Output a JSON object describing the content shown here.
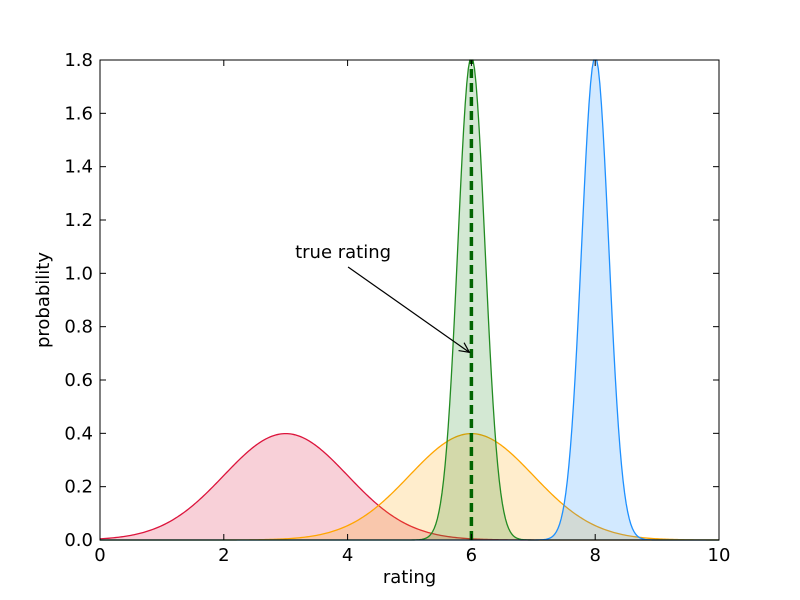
{
  "chart_data": {
    "type": "area",
    "xlabel": "rating",
    "ylabel": "probability",
    "xlim": [
      0,
      10
    ],
    "ylim": [
      0,
      1.8
    ],
    "xticks": [
      0,
      2,
      4,
      6,
      8,
      10
    ],
    "xtick_labels": [
      "0",
      "2",
      "4",
      "6",
      "8",
      "10"
    ],
    "yticks": [
      0.0,
      0.2,
      0.4,
      0.6,
      0.8,
      1.0,
      1.2,
      1.4,
      1.6,
      1.8
    ],
    "ytick_labels": [
      "0.0",
      "0.2",
      "0.4",
      "0.6",
      "0.8",
      "1.0",
      "1.2",
      "1.4",
      "1.6",
      "1.8"
    ],
    "grid": false,
    "series": [
      {
        "mean": 3.0,
        "sd": 1.0,
        "line_color": "#dc143c",
        "fill_color": "#dc143c",
        "fill_alpha": 0.2
      },
      {
        "mean": 6.0,
        "sd": 1.0,
        "line_color": "#ffa500",
        "fill_color": "#ffa500",
        "fill_alpha": 0.2
      },
      {
        "mean": 6.0,
        "sd": 0.22,
        "line_color": "#228b22",
        "fill_color": "#228b22",
        "fill_alpha": 0.2
      },
      {
        "mean": 8.0,
        "sd": 0.22,
        "line_color": "#1e90ff",
        "fill_color": "#1e90ff",
        "fill_alpha": 0.2
      }
    ],
    "reference_line": {
      "x": 6.0,
      "color": "#006400",
      "style": "dashed",
      "y_top": 1.8
    },
    "annotation": {
      "text": "true rating",
      "text_x": 3.2,
      "text_y": 1.08,
      "arrow_tip_x": 6.0,
      "arrow_tip_y": 0.7
    }
  }
}
